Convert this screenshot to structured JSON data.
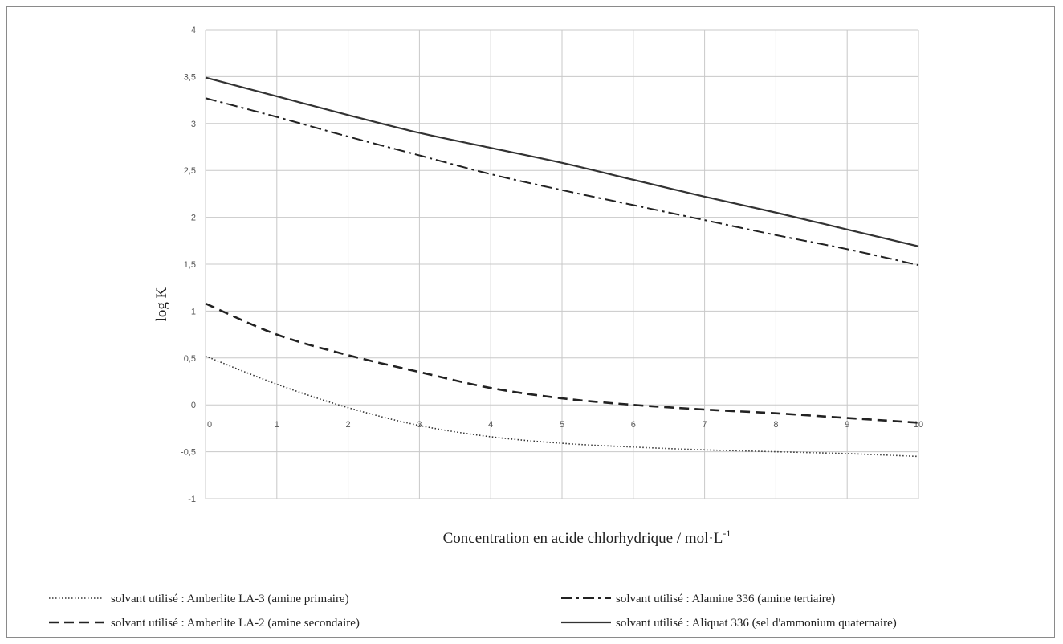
{
  "chart_data": {
    "type": "line",
    "xlabel": "Concentration en acide chlorhydrique / mol·L",
    "xlabel_superscript": "-1",
    "ylabel": "log K",
    "xlim": [
      0,
      10
    ],
    "ylim": [
      -1,
      4
    ],
    "x_ticks": [
      0,
      1,
      2,
      3,
      4,
      5,
      6,
      7,
      8,
      9,
      10
    ],
    "x_tick_labels": [
      "0",
      "1",
      "2",
      "3",
      "4",
      "5",
      "6",
      "7",
      "8",
      "9",
      "10"
    ],
    "y_ticks": [
      -1,
      -0.5,
      0,
      0.5,
      1,
      1.5,
      2,
      2.5,
      3,
      3.5,
      4
    ],
    "y_tick_labels": [
      "-1",
      "-0,5",
      "0",
      "0,5",
      "1",
      "1,5",
      "2",
      "2,5",
      "3",
      "3,5",
      "4"
    ],
    "grid": true,
    "legend_position": "bottom",
    "series": [
      {
        "name": "solvant utilisé : Amberlite LA-3 (amine primaire)",
        "style": "dotted",
        "color": "#333333",
        "x": [
          0,
          1,
          2,
          3,
          4,
          5,
          6,
          7,
          8,
          9,
          10
        ],
        "y": [
          0.52,
          0.22,
          -0.03,
          -0.22,
          -0.34,
          -0.41,
          -0.45,
          -0.48,
          -0.5,
          -0.52,
          -0.55
        ]
      },
      {
        "name": "solvant utilisé : Amberlite LA-2 (amine secondaire)",
        "style": "dashed",
        "color": "#222222",
        "x": [
          0,
          1,
          2,
          3,
          4,
          5,
          6,
          7,
          8,
          9,
          10
        ],
        "y": [
          1.08,
          0.75,
          0.53,
          0.35,
          0.18,
          0.07,
          0.0,
          -0.05,
          -0.09,
          -0.14,
          -0.19
        ]
      },
      {
        "name": "solvant utilisé : Alamine 336 (amine tertiaire)",
        "style": "dashdot",
        "color": "#222222",
        "x": [
          0,
          1,
          2,
          3,
          4,
          5,
          6,
          7,
          8,
          9,
          10
        ],
        "y": [
          3.27,
          3.07,
          2.86,
          2.66,
          2.46,
          2.29,
          2.13,
          1.97,
          1.81,
          1.66,
          1.49
        ]
      },
      {
        "name": "solvant utilisé : Aliquat 336 (sel d'ammonium quaternaire)",
        "style": "solid",
        "color": "#333333",
        "x": [
          0,
          1,
          2,
          3,
          4,
          5,
          6,
          7,
          8,
          9,
          10
        ],
        "y": [
          3.49,
          3.29,
          3.09,
          2.9,
          2.74,
          2.58,
          2.4,
          2.22,
          2.05,
          1.87,
          1.69
        ]
      }
    ]
  }
}
